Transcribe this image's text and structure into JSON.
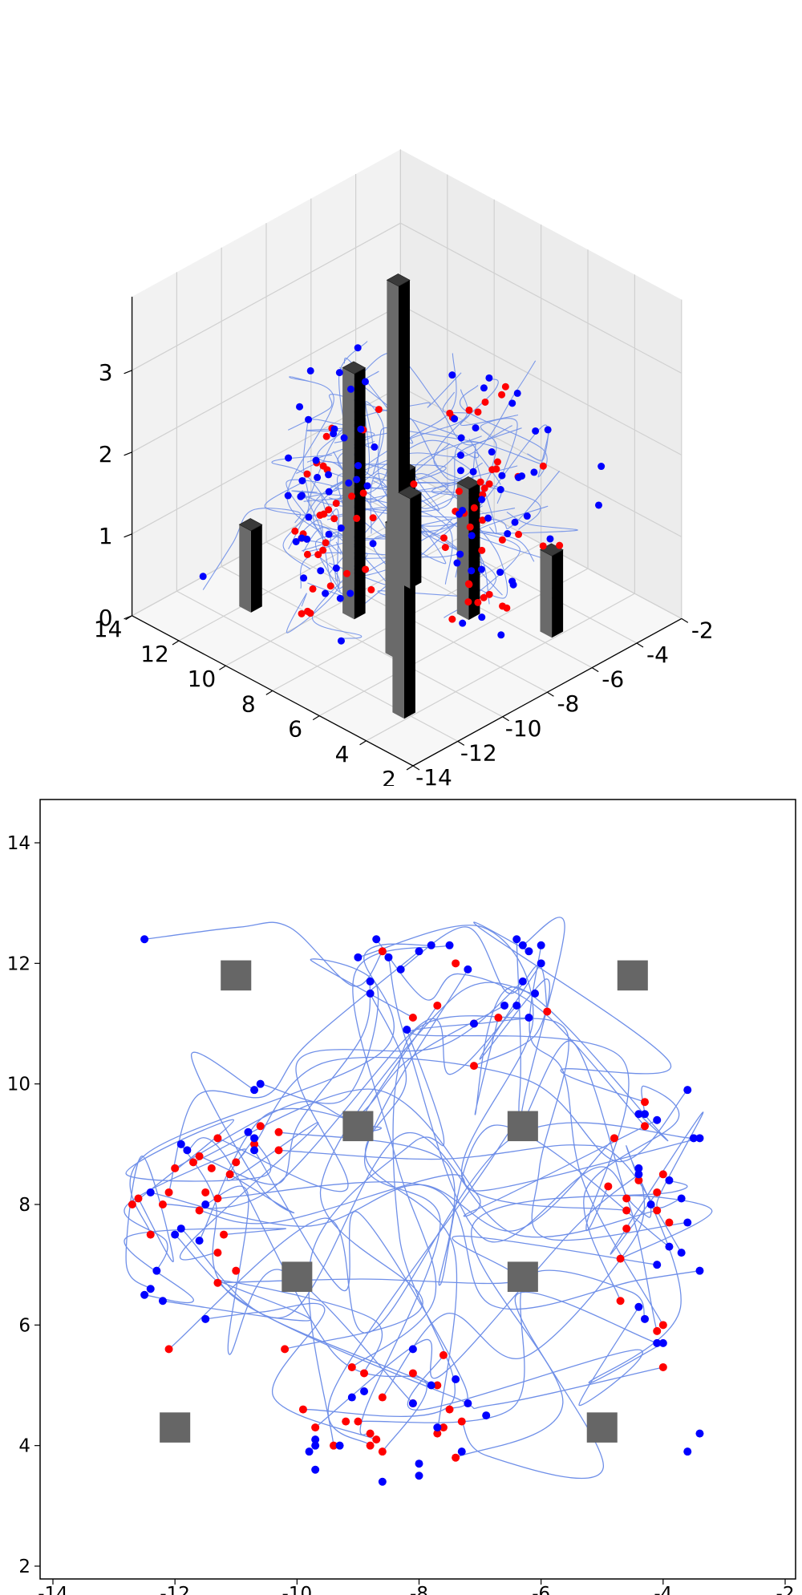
{
  "chart_data": [
    {
      "type": "scatter",
      "projection": "3d",
      "title": "",
      "xlabel": "",
      "ylabel": "",
      "zlabel": "",
      "xlim": [
        -14,
        -2
      ],
      "ylim": [
        2,
        14
      ],
      "zlim": [
        0,
        3
      ],
      "x_ticks": [
        "-14",
        "-12",
        "-10",
        "-8",
        "-6",
        "-4",
        "-2"
      ],
      "y_ticks": [
        "2",
        "4",
        "6",
        "8",
        "10",
        "12",
        "14"
      ],
      "z_ticks": [
        "0",
        "1",
        "2",
        "3"
      ],
      "grid": true,
      "colors": {
        "start": "#ff0000",
        "end": "#0000ff",
        "path": "#6f8fe8",
        "pillar_front": "#6a6a6a",
        "pillar_side": "#000000"
      },
      "obstacles": [
        {
          "x": -11,
          "y": 11.8,
          "height": 1.0
        },
        {
          "x": -9,
          "y": 9.3,
          "height": 3.0
        },
        {
          "x": -6.5,
          "y": 9.3,
          "height": 1.1
        },
        {
          "x": -9.7,
          "y": 6.8,
          "height": 1.6
        },
        {
          "x": -6.5,
          "y": 6.8,
          "height": 1.6
        },
        {
          "x": -4.4,
          "y": 11.8,
          "height": 3.0
        },
        {
          "x": -12,
          "y": 4.3,
          "height": 3.0
        },
        {
          "x": -5.4,
          "y": 4.3,
          "height": 1.0
        }
      ]
    },
    {
      "type": "scatter",
      "projection": "2d",
      "title": "",
      "xlabel": "",
      "ylabel": "",
      "xlim": [
        -14,
        -2
      ],
      "ylim": [
        2,
        14
      ],
      "x_ticks": [
        "-14",
        "-12",
        "-10",
        "-8",
        "-6",
        "-4",
        "-2"
      ],
      "y_ticks": [
        "2",
        "4",
        "6",
        "8",
        "10",
        "12",
        "14"
      ],
      "grid": false,
      "colors": {
        "start": "#ff0000",
        "end": "#0000ff",
        "path": "#6f8fe8",
        "obstacle": "#666666"
      },
      "obstacles": [
        {
          "x": -11.0,
          "y": 11.8,
          "size": 0.5
        },
        {
          "x": -4.5,
          "y": 11.8,
          "size": 0.5
        },
        {
          "x": -9.0,
          "y": 9.3,
          "size": 0.5
        },
        {
          "x": -6.3,
          "y": 9.3,
          "size": 0.5
        },
        {
          "x": -10.0,
          "y": 6.8,
          "size": 0.5
        },
        {
          "x": -6.3,
          "y": 6.8,
          "size": 0.5
        },
        {
          "x": -12.0,
          "y": 4.3,
          "size": 0.5
        },
        {
          "x": -5.0,
          "y": 4.3,
          "size": 0.5
        }
      ],
      "start_points": [
        [
          -8.6,
          12.2
        ],
        [
          -7.4,
          12.0
        ],
        [
          -7.1,
          11.0
        ],
        [
          -6.7,
          11.1
        ],
        [
          -7.1,
          10.3
        ],
        [
          -5.9,
          11.2
        ],
        [
          -7.7,
          11.3
        ],
        [
          -8.1,
          11.1
        ],
        [
          -10.6,
          9.3
        ],
        [
          -10.3,
          9.2
        ],
        [
          -10.7,
          9.0
        ],
        [
          -11.3,
          9.1
        ],
        [
          -11.6,
          8.8
        ],
        [
          -11.0,
          8.7
        ],
        [
          -11.1,
          8.5
        ],
        [
          -11.4,
          8.6
        ],
        [
          -10.3,
          8.9
        ],
        [
          -11.7,
          8.7
        ],
        [
          -12.0,
          8.6
        ],
        [
          -12.1,
          8.2
        ],
        [
          -12.6,
          8.1
        ],
        [
          -12.7,
          8.0
        ],
        [
          -11.5,
          8.2
        ],
        [
          -11.3,
          8.1
        ],
        [
          -11.6,
          7.9
        ],
        [
          -12.2,
          8.0
        ],
        [
          -12.4,
          7.5
        ],
        [
          -11.2,
          7.5
        ],
        [
          -11.3,
          7.2
        ],
        [
          -11.0,
          6.9
        ],
        [
          -11.3,
          6.7
        ],
        [
          -12.1,
          5.6
        ],
        [
          -10.2,
          5.6
        ],
        [
          -9.1,
          5.3
        ],
        [
          -8.9,
          5.2
        ],
        [
          -8.1,
          5.2
        ],
        [
          -7.7,
          5.0
        ],
        [
          -7.6,
          5.5
        ],
        [
          -8.6,
          4.8
        ],
        [
          -9.9,
          4.6
        ],
        [
          -8.8,
          4.2
        ],
        [
          -8.7,
          4.1
        ],
        [
          -8.6,
          3.9
        ],
        [
          -9.2,
          4.4
        ],
        [
          -9.0,
          4.4
        ],
        [
          -9.7,
          4.3
        ],
        [
          -9.4,
          4.0
        ],
        [
          -8.8,
          4.0
        ],
        [
          -8.1,
          4.7
        ],
        [
          -7.5,
          4.6
        ],
        [
          -7.6,
          4.3
        ],
        [
          -7.3,
          4.4
        ],
        [
          -7.4,
          3.8
        ],
        [
          -7.7,
          4.2
        ],
        [
          -4.3,
          9.7
        ],
        [
          -4.3,
          9.3
        ],
        [
          -4.8,
          9.1
        ],
        [
          -4.0,
          8.5
        ],
        [
          -4.4,
          8.4
        ],
        [
          -4.1,
          8.2
        ],
        [
          -4.9,
          8.3
        ],
        [
          -4.6,
          8.1
        ],
        [
          -4.6,
          7.9
        ],
        [
          -4.1,
          7.9
        ],
        [
          -3.9,
          7.7
        ],
        [
          -4.6,
          7.6
        ],
        [
          -4.7,
          7.1
        ],
        [
          -4.7,
          6.4
        ],
        [
          -4.0,
          6.0
        ],
        [
          -4.1,
          5.9
        ],
        [
          -4.0,
          5.3
        ]
      ],
      "end_points": [
        [
          -12.5,
          12.4
        ],
        [
          -10.6,
          10.0
        ],
        [
          -10.7,
          9.9
        ],
        [
          -10.8,
          9.2
        ],
        [
          -10.7,
          9.1
        ],
        [
          -11.9,
          9.0
        ],
        [
          -11.8,
          8.9
        ],
        [
          -10.7,
          8.9
        ],
        [
          -12.4,
          8.2
        ],
        [
          -11.9,
          7.6
        ],
        [
          -12.0,
          7.5
        ],
        [
          -11.6,
          7.4
        ],
        [
          -12.3,
          6.9
        ],
        [
          -12.4,
          6.6
        ],
        [
          -12.5,
          6.5
        ],
        [
          -12.2,
          6.4
        ],
        [
          -11.5,
          6.1
        ],
        [
          -11.5,
          8.0
        ],
        [
          -8.7,
          12.4
        ],
        [
          -9.0,
          12.1
        ],
        [
          -8.5,
          12.1
        ],
        [
          -8.3,
          11.9
        ],
        [
          -8.8,
          11.7
        ],
        [
          -8.0,
          12.2
        ],
        [
          -7.8,
          12.3
        ],
        [
          -7.5,
          12.3
        ],
        [
          -7.2,
          11.9
        ],
        [
          -6.4,
          12.4
        ],
        [
          -6.2,
          12.2
        ],
        [
          -6.3,
          12.3
        ],
        [
          -6.0,
          12.3
        ],
        [
          -6.0,
          12.0
        ],
        [
          -6.3,
          11.7
        ],
        [
          -6.6,
          11.3
        ],
        [
          -6.4,
          11.3
        ],
        [
          -6.1,
          11.5
        ],
        [
          -6.2,
          11.1
        ],
        [
          -8.2,
          10.9
        ],
        [
          -8.8,
          11.5
        ],
        [
          -7.1,
          11.0
        ],
        [
          -4.3,
          9.5
        ],
        [
          -4.4,
          9.5
        ],
        [
          -3.6,
          9.9
        ],
        [
          -4.1,
          9.4
        ],
        [
          -3.4,
          9.1
        ],
        [
          -3.5,
          9.1
        ],
        [
          -4.4,
          8.6
        ],
        [
          -4.4,
          8.5
        ],
        [
          -3.9,
          8.4
        ],
        [
          -3.7,
          8.1
        ],
        [
          -4.2,
          8.0
        ],
        [
          -3.6,
          7.7
        ],
        [
          -3.9,
          7.3
        ],
        [
          -3.7,
          7.2
        ],
        [
          -3.4,
          6.9
        ],
        [
          -4.1,
          7.0
        ],
        [
          -4.4,
          6.3
        ],
        [
          -4.3,
          6.1
        ],
        [
          -4.1,
          5.7
        ],
        [
          -4.0,
          5.7
        ],
        [
          -3.4,
          4.2
        ],
        [
          -3.6,
          3.9
        ],
        [
          -8.1,
          5.6
        ],
        [
          -7.8,
          5.0
        ],
        [
          -7.4,
          5.1
        ],
        [
          -7.2,
          4.7
        ],
        [
          -6.9,
          4.5
        ],
        [
          -9.1,
          4.8
        ],
        [
          -8.9,
          4.9
        ],
        [
          -8.1,
          4.7
        ],
        [
          -7.7,
          4.3
        ],
        [
          -9.7,
          4.1
        ],
        [
          -9.7,
          4.0
        ],
        [
          -9.8,
          3.9
        ],
        [
          -9.3,
          4.0
        ],
        [
          -9.7,
          3.6
        ],
        [
          -8.6,
          3.4
        ],
        [
          -8.0,
          3.5
        ],
        [
          -8.0,
          3.7
        ],
        [
          -7.3,
          3.9
        ]
      ]
    }
  ]
}
